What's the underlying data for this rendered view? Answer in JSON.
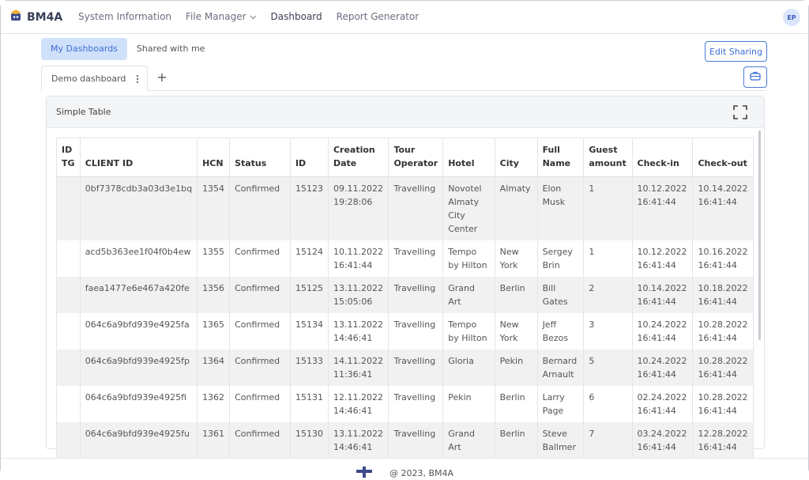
{
  "app": {
    "name": "BM4A",
    "user_initials": "EP"
  },
  "nav": {
    "items": [
      {
        "label": "System Information"
      },
      {
        "label": "File Manager"
      },
      {
        "label": "Dashboard"
      },
      {
        "label": "Report Generator"
      }
    ]
  },
  "subtabs": [
    {
      "label": "My Dashboards"
    },
    {
      "label": "Shared with me"
    }
  ],
  "edit_sharing_label": "Edit Sharing",
  "dashboard_tab": {
    "label": "Demo dashboard",
    "add_symbol": "+"
  },
  "panel": {
    "title": "Simple Table"
  },
  "table": {
    "columns": [
      "ID TG",
      "CLIENT ID",
      "HCN",
      "Status",
      "ID",
      "Creation Date",
      "Tour Operator",
      "Hotel",
      "City",
      "Full Name",
      "Guest amount",
      "Check-in",
      "Check-out"
    ],
    "rows": [
      {
        "idtg": "",
        "client_id": "0bf7378cdb3a03d3e1bq",
        "hcn": "1354",
        "status": "Confirmed",
        "id": "15123",
        "creation_date": "09.11.2022 19:28:06",
        "tour_operator": "Travelling",
        "hotel": "Novotel Almaty City Center",
        "city": "Almaty",
        "full_name": "Elon Musk",
        "guests": "1",
        "check_in": "10.12.2022 16:41:44",
        "check_out": "10.14.2022 16:41:44"
      },
      {
        "idtg": "",
        "client_id": "acd5b363ee1f04f0b4ew",
        "hcn": "1355",
        "status": "Confirmed",
        "id": "15124",
        "creation_date": "10.11.2022 16:41:44",
        "tour_operator": "Travelling",
        "hotel": "Tempo by Hilton",
        "city": "New York",
        "full_name": "Sergey Brin",
        "guests": "1",
        "check_in": "10.12.2022 16:41:44",
        "check_out": "10.16.2022 16:41:44"
      },
      {
        "idtg": "",
        "client_id": "faea1477e6e467a420fe",
        "hcn": "1356",
        "status": "Confirmed",
        "id": "15125",
        "creation_date": "13.11.2022 15:05:06",
        "tour_operator": "Travelling",
        "hotel": "Grand Art",
        "city": "Berlin",
        "full_name": "Bill Gates",
        "guests": "2",
        "check_in": "10.14.2022 16:41:44",
        "check_out": "10.18.2022 16:41:44"
      },
      {
        "idtg": "",
        "client_id": "064c6a9bfd939e4925fa",
        "hcn": "1365",
        "status": "Confirmed",
        "id": "15134",
        "creation_date": "13.11.2022 14:46:41",
        "tour_operator": "Travelling",
        "hotel": "Tempo by Hilton",
        "city": "New York",
        "full_name": "Jeff Bezos",
        "guests": "3",
        "check_in": "10.24.2022 16:41:44",
        "check_out": "10.28.2022 16:41:44"
      },
      {
        "idtg": "",
        "client_id": "064c6a9bfd939e4925fp",
        "hcn": "1364",
        "status": "Confirmed",
        "id": "15133",
        "creation_date": "14.11.2022 11:36:41",
        "tour_operator": "Travelling",
        "hotel": "Gloria",
        "city": "Pekin",
        "full_name": "Bernard Arnault",
        "guests": "5",
        "check_in": "10.24.2022 16:41:44",
        "check_out": "10.28.2022 16:41:44"
      },
      {
        "idtg": "",
        "client_id": "064c6a9bfd939e4925fi",
        "hcn": "1362",
        "status": "Confirmed",
        "id": "15131",
        "creation_date": "12.11.2022 14:46:41",
        "tour_operator": "Travelling",
        "hotel": "Pekin",
        "city": "Berlin",
        "full_name": "Larry Page",
        "guests": "6",
        "check_in": "02.24.2022 16:41:44",
        "check_out": "10.28.2022 16:41:44"
      },
      {
        "idtg": "",
        "client_id": "064c6a9bfd939e4925fu",
        "hcn": "1361",
        "status": "Confirmed",
        "id": "15130",
        "creation_date": "13.11.2022 14:46:41",
        "tour_operator": "Travelling",
        "hotel": "Grand Art",
        "city": "Berlin",
        "full_name": "Steve Ballmer",
        "guests": "7",
        "check_in": "03.24.2022 16:41:44",
        "check_out": "12.28.2022 16:41:44"
      }
    ]
  },
  "footer": {
    "text": "@ 2023, BM4A"
  }
}
